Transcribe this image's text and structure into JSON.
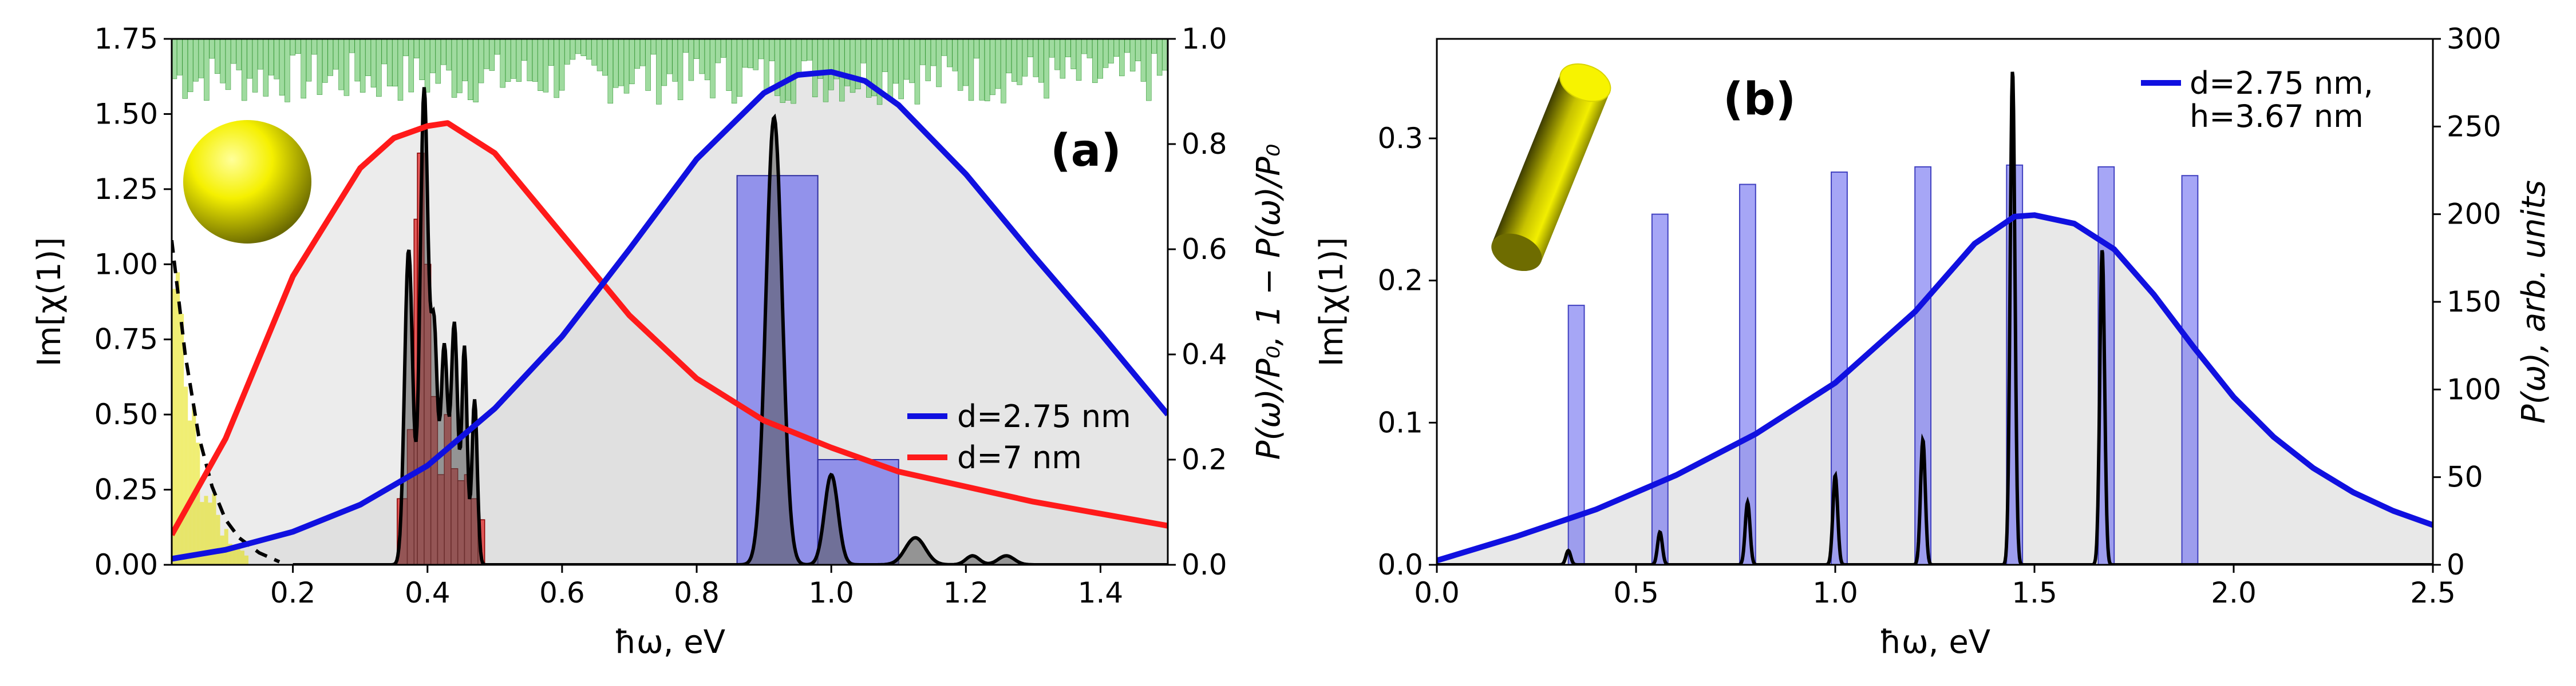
{
  "chart_data": [
    {
      "type": "line",
      "panel_label": "(a)",
      "xlabel": "ħω, eV",
      "ylabel": "Im[χ(1)]",
      "ylabel_right": "P(ω)/P₀, 1 − P(ω)/P₀",
      "xlim": [
        0.02,
        1.5
      ],
      "ylim": [
        0,
        1.75
      ],
      "ylim_right": [
        0,
        1.0
      ],
      "x_ticks": [
        "0.2",
        "0.4",
        "0.6",
        "0.8",
        "1.0",
        "1.2",
        "1.4"
      ],
      "y_ticks": [
        "0.00",
        "0.25",
        "0.50",
        "0.75",
        "1.00",
        "1.25",
        "1.50",
        "1.75"
      ],
      "y_ticks_right": [
        "0.0",
        "0.2",
        "0.4",
        "0.6",
        "0.8",
        "1.0"
      ],
      "legend_position": "center-right",
      "series": [
        {
          "name": "d=2.75 nm",
          "color": "#1010e0",
          "axis": "left",
          "x": [
            0.02,
            0.1,
            0.2,
            0.3,
            0.4,
            0.5,
            0.6,
            0.7,
            0.8,
            0.9,
            0.95,
            1.0,
            1.05,
            1.1,
            1.2,
            1.3,
            1.4,
            1.5
          ],
          "y": [
            0.02,
            0.05,
            0.11,
            0.2,
            0.33,
            0.52,
            0.76,
            1.05,
            1.35,
            1.57,
            1.63,
            1.64,
            1.61,
            1.53,
            1.3,
            1.03,
            0.77,
            0.5
          ]
        },
        {
          "name": "d=7 nm",
          "color": "#ff1a1a",
          "axis": "left",
          "x": [
            0.02,
            0.1,
            0.2,
            0.3,
            0.35,
            0.4,
            0.43,
            0.5,
            0.6,
            0.7,
            0.8,
            0.9,
            1.0,
            1.1,
            1.2,
            1.3,
            1.4,
            1.5
          ],
          "y": [
            0.1,
            0.42,
            0.96,
            1.32,
            1.42,
            1.46,
            1.47,
            1.37,
            1.1,
            0.83,
            0.62,
            0.48,
            0.39,
            0.31,
            0.26,
            0.21,
            0.17,
            0.13
          ]
        },
        {
          "name": "",
          "color": "#000000",
          "style": "dashed",
          "axis": "left",
          "x": [
            0.02,
            0.04,
            0.06,
            0.08,
            0.1,
            0.12,
            0.15,
            0.18
          ],
          "y": [
            1.08,
            0.7,
            0.43,
            0.26,
            0.15,
            0.09,
            0.04,
            0.01
          ]
        }
      ],
      "histograms": [
        {
          "name": "",
          "color": "#1010e0",
          "axis": "right",
          "x_left": [
            0.86,
            0.98
          ],
          "x_right": [
            0.98,
            1.1
          ],
          "values": [
            0.74,
            0.2
          ]
        },
        {
          "name": "",
          "color": "#ff1a1a",
          "axis": "left",
          "x_left": [
            0.355,
            0.37,
            0.38,
            0.385,
            0.395,
            0.405,
            0.415,
            0.425,
            0.435,
            0.445,
            0.455,
            0.465,
            0.475
          ],
          "x_right": [
            0.37,
            0.38,
            0.385,
            0.395,
            0.405,
            0.415,
            0.425,
            0.435,
            0.445,
            0.455,
            0.465,
            0.475,
            0.485
          ],
          "values": [
            0.22,
            0.45,
            1.15,
            1.37,
            1.0,
            0.56,
            0.3,
            0.5,
            0.32,
            0.28,
            0.3,
            0.22,
            0.15
          ]
        }
      ]
    },
    {
      "type": "line",
      "panel_label": "(b)",
      "xlabel": "ħω, eV",
      "ylabel": "Im[χ(1)]",
      "ylabel_right": "P(ω), arb. units",
      "xlim": [
        0.0,
        2.5
      ],
      "ylim": [
        0,
        0.37
      ],
      "ylim_right": [
        0,
        300
      ],
      "x_ticks": [
        "0.0",
        "0.5",
        "1.0",
        "1.5",
        "2.0",
        "2.5"
      ],
      "y_ticks": [
        "0.0",
        "0.1",
        "0.2",
        "0.3"
      ],
      "y_ticks_right": [
        "0",
        "50",
        "100",
        "150",
        "200",
        "250",
        "300"
      ],
      "legend_position": "top-right",
      "series": [
        {
          "name": "d=2.75 nm, h=3.67 nm",
          "legend_lines": [
            "d=2.75 nm,",
            "h=3.67 nm"
          ],
          "color": "#1010e0",
          "axis": "left",
          "x": [
            0.0,
            0.2,
            0.4,
            0.6,
            0.8,
            1.0,
            1.2,
            1.35,
            1.45,
            1.5,
            1.6,
            1.7,
            1.8,
            1.9,
            2.0,
            2.1,
            2.2,
            2.3,
            2.4,
            2.5
          ],
          "y": [
            0.003,
            0.02,
            0.039,
            0.063,
            0.092,
            0.128,
            0.178,
            0.226,
            0.245,
            0.246,
            0.24,
            0.222,
            0.19,
            0.153,
            0.118,
            0.09,
            0.068,
            0.051,
            0.038,
            0.028
          ]
        }
      ],
      "peaks": {
        "name": "",
        "color": "#000000",
        "axis": "left",
        "x": [
          0.33,
          0.56,
          0.78,
          1.0,
          1.22,
          1.445,
          1.67
        ],
        "y": [
          0.01,
          0.023,
          0.044,
          0.063,
          0.088,
          0.348,
          0.222
        ]
      },
      "histograms": [
        {
          "name": "",
          "color": "#1010e0",
          "axis": "right",
          "x": [
            0.35,
            0.56,
            0.78,
            1.01,
            1.22,
            1.45,
            1.68,
            1.89
          ],
          "values": [
            148,
            200,
            217,
            224,
            227,
            228,
            227,
            222
          ],
          "bar_width": 0.04
        }
      ]
    }
  ]
}
